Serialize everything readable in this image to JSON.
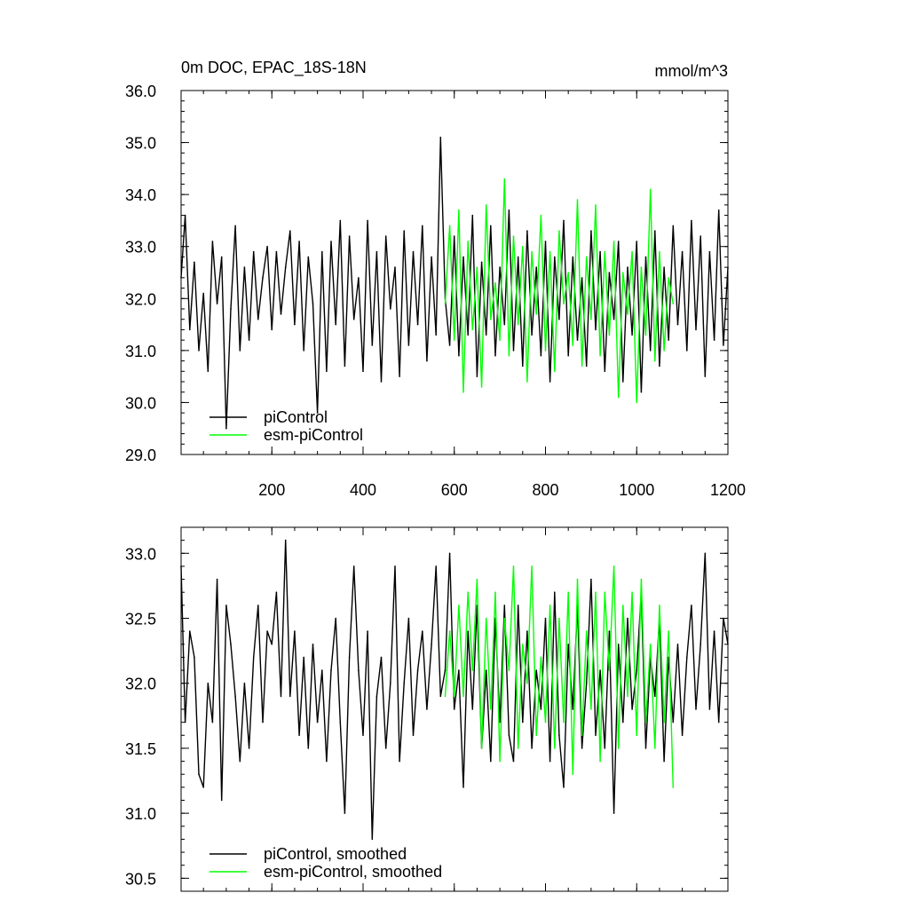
{
  "colors": {
    "picontrol": "#000000",
    "esm_picontrol": "#00ff00",
    "axis": "#000000"
  },
  "chart_data": [
    {
      "type": "line",
      "title": "0m DOC, EPAC_18S-18N",
      "units": "mmol/m^3",
      "xlim": [
        1,
        1200
      ],
      "ylim": [
        29.0,
        36.0
      ],
      "xticks": [
        200,
        400,
        600,
        800,
        1000,
        1200
      ],
      "xtick_labels": [
        "200",
        "400",
        "600",
        "800",
        "1000",
        "1200"
      ],
      "yticks": [
        29.0,
        30.0,
        31.0,
        32.0,
        33.0,
        34.0,
        35.0,
        36.0
      ],
      "ytick_labels": [
        "29.0",
        "30.0",
        "31.0",
        "32.0",
        "33.0",
        "34.0",
        "35.0",
        "36.0"
      ],
      "grid": false,
      "legend": "bottom-left",
      "series": [
        {
          "name": "piControl",
          "color": "#000000",
          "x": [
            1,
            10,
            20,
            30,
            40,
            50,
            60,
            70,
            80,
            90,
            100,
            110,
            120,
            130,
            140,
            150,
            160,
            170,
            180,
            190,
            200,
            210,
            220,
            230,
            240,
            250,
            260,
            270,
            280,
            290,
            300,
            310,
            320,
            330,
            340,
            350,
            360,
            370,
            380,
            390,
            400,
            410,
            420,
            430,
            440,
            450,
            460,
            470,
            480,
            490,
            500,
            510,
            520,
            530,
            540,
            550,
            560,
            570,
            580,
            590,
            600,
            610,
            620,
            630,
            640,
            650,
            660,
            670,
            680,
            690,
            700,
            710,
            720,
            730,
            740,
            750,
            760,
            770,
            780,
            790,
            800,
            810,
            820,
            830,
            840,
            850,
            860,
            870,
            880,
            890,
            900,
            910,
            920,
            930,
            940,
            950,
            960,
            970,
            980,
            990,
            1000,
            1010,
            1020,
            1030,
            1040,
            1050,
            1060,
            1070,
            1080,
            1090,
            1100,
            1110,
            1120,
            1130,
            1140,
            1150,
            1160,
            1170,
            1180,
            1190,
            1200
          ],
          "values": [
            32.4,
            33.6,
            31.4,
            32.7,
            31.0,
            32.1,
            30.6,
            33.1,
            31.9,
            32.8,
            29.5,
            31.8,
            33.4,
            31.0,
            32.6,
            31.2,
            32.9,
            31.6,
            32.4,
            33.0,
            31.4,
            32.9,
            31.7,
            32.6,
            33.3,
            31.5,
            33.1,
            31.0,
            32.8,
            31.9,
            29.8,
            32.9,
            30.6,
            33.1,
            31.5,
            33.5,
            30.7,
            33.2,
            31.6,
            32.4,
            30.6,
            33.5,
            31.1,
            32.9,
            30.4,
            33.2,
            31.8,
            32.6,
            30.5,
            33.3,
            31.1,
            32.9,
            31.5,
            33.4,
            30.8,
            32.8,
            31.3,
            35.1,
            32.0,
            31.1,
            33.2,
            30.9,
            32.8,
            31.3,
            33.6,
            30.5,
            32.7,
            31.3,
            33.4,
            30.9,
            32.6,
            31.5,
            33.7,
            31.0,
            32.8,
            30.7,
            33.3,
            31.3,
            32.6,
            30.9,
            33.1,
            30.4,
            32.8,
            31.6,
            33.5,
            30.9,
            32.8,
            31.2,
            32.4,
            30.7,
            33.3,
            31.4,
            32.9,
            30.6,
            32.5,
            31.6,
            33.1,
            30.4,
            32.6,
            31.3,
            33.1,
            30.2,
            32.8,
            31.0,
            33.3,
            30.7,
            32.6,
            31.2,
            33.4,
            31.5,
            32.9,
            31.0,
            33.5,
            31.4,
            33.2,
            30.5,
            32.9,
            31.2,
            33.7,
            31.1,
            32.6
          ]
        },
        {
          "name": "esm-piControl",
          "color": "#00ff00",
          "x": [
            580,
            590,
            600,
            610,
            620,
            630,
            640,
            650,
            660,
            670,
            680,
            690,
            700,
            710,
            720,
            730,
            740,
            750,
            760,
            770,
            780,
            790,
            800,
            810,
            820,
            830,
            840,
            850,
            860,
            870,
            880,
            890,
            900,
            910,
            920,
            930,
            940,
            950,
            960,
            970,
            980,
            990,
            1000,
            1010,
            1020,
            1030,
            1040,
            1050,
            1060,
            1070,
            1080
          ],
          "values": [
            31.9,
            33.4,
            31.2,
            33.7,
            30.2,
            33.1,
            31.4,
            32.6,
            30.3,
            33.8,
            31.6,
            32.3,
            31.2,
            34.3,
            30.9,
            33.2,
            31.5,
            33.0,
            30.4,
            32.9,
            31.7,
            33.6,
            31.0,
            32.9,
            30.6,
            33.3,
            31.9,
            32.5,
            31.1,
            33.9,
            30.7,
            32.8,
            31.6,
            33.8,
            30.9,
            32.9,
            31.3,
            33.1,
            30.1,
            32.5,
            31.7,
            32.9,
            30.0,
            32.6,
            31.3,
            34.1,
            30.8,
            32.9,
            31.0,
            32.4,
            31.9
          ]
        }
      ]
    },
    {
      "type": "line",
      "xlim": [
        1,
        1200
      ],
      "ylim": [
        30.4,
        33.2
      ],
      "xticks": [
        200,
        400,
        600,
        800,
        1000,
        1200
      ],
      "yticks": [
        30.5,
        31.0,
        31.5,
        32.0,
        32.5,
        33.0
      ],
      "ytick_labels": [
        "30.5",
        "31.0",
        "31.5",
        "32.0",
        "32.5",
        "33.0"
      ],
      "grid": false,
      "legend": "bottom-left",
      "series": [
        {
          "name": "piControl, smoothed",
          "color": "#000000",
          "x": [
            1,
            10,
            20,
            30,
            40,
            50,
            60,
            70,
            80,
            90,
            100,
            110,
            120,
            130,
            140,
            150,
            160,
            170,
            180,
            190,
            200,
            210,
            220,
            230,
            240,
            250,
            260,
            270,
            280,
            290,
            300,
            310,
            320,
            330,
            340,
            350,
            360,
            370,
            380,
            390,
            400,
            410,
            420,
            430,
            440,
            450,
            460,
            470,
            480,
            490,
            500,
            510,
            520,
            530,
            540,
            550,
            560,
            570,
            580,
            590,
            600,
            610,
            620,
            630,
            640,
            650,
            660,
            670,
            680,
            690,
            700,
            710,
            720,
            730,
            740,
            750,
            760,
            770,
            780,
            790,
            800,
            810,
            820,
            830,
            840,
            850,
            860,
            870,
            880,
            890,
            900,
            910,
            920,
            930,
            940,
            950,
            960,
            970,
            980,
            990,
            1000,
            1010,
            1020,
            1030,
            1040,
            1050,
            1060,
            1070,
            1080,
            1090,
            1100,
            1110,
            1120,
            1130,
            1140,
            1150,
            1160,
            1170,
            1180,
            1190,
            1200
          ],
          "values": [
            32.9,
            31.7,
            32.4,
            32.2,
            31.3,
            31.2,
            32.0,
            31.7,
            32.8,
            31.1,
            32.6,
            32.3,
            31.9,
            31.4,
            32.0,
            31.5,
            32.2,
            32.6,
            31.7,
            32.4,
            32.3,
            32.7,
            31.9,
            33.1,
            31.9,
            32.4,
            31.6,
            32.2,
            31.5,
            32.3,
            31.7,
            32.1,
            31.4,
            32.1,
            32.5,
            31.7,
            31.0,
            32.2,
            32.9,
            32.1,
            31.6,
            32.4,
            30.8,
            31.9,
            32.2,
            31.5,
            32.0,
            32.9,
            31.4,
            32.0,
            32.5,
            31.6,
            32.1,
            32.4,
            31.8,
            32.3,
            32.9,
            31.9,
            32.1,
            33.0,
            31.8,
            32.1,
            31.2,
            32.4,
            31.8,
            32.6,
            31.5,
            32.1,
            31.4,
            32.5,
            31.7,
            32.6,
            31.6,
            31.4,
            32.6,
            31.7,
            32.4,
            31.5,
            32.1,
            31.8,
            32.5,
            31.4,
            32.7,
            31.6,
            31.2,
            32.3,
            31.8,
            32.6,
            31.5,
            32.0,
            32.8,
            31.6,
            32.1,
            31.5,
            32.4,
            31.0,
            32.3,
            31.7,
            32.5,
            31.8,
            32.1,
            32.7,
            31.5,
            32.2,
            31.9,
            32.5,
            31.4,
            32.2,
            31.7,
            32.3,
            31.6,
            32.2,
            32.6,
            31.8,
            32.3,
            33.0,
            31.8,
            32.4,
            31.7,
            32.5,
            32.3
          ]
        },
        {
          "name": "esm-piControl, smoothed",
          "color": "#00ff00",
          "x": [
            580,
            590,
            600,
            610,
            620,
            630,
            640,
            650,
            660,
            670,
            680,
            690,
            700,
            710,
            720,
            730,
            740,
            750,
            760,
            770,
            780,
            790,
            800,
            810,
            820,
            830,
            840,
            850,
            860,
            870,
            880,
            890,
            900,
            910,
            920,
            930,
            940,
            950,
            960,
            970,
            980,
            990,
            1000,
            1010,
            1020,
            1030,
            1040,
            1050,
            1060,
            1070,
            1080
          ],
          "values": [
            31.9,
            32.4,
            31.9,
            32.6,
            31.9,
            32.7,
            32.1,
            32.8,
            31.5,
            32.5,
            31.8,
            32.7,
            31.4,
            32.5,
            32.1,
            32.9,
            31.5,
            32.3,
            32.0,
            32.9,
            31.6,
            32.2,
            31.7,
            32.6,
            31.5,
            32.5,
            31.7,
            32.7,
            31.3,
            32.8,
            31.6,
            32.4,
            31.8,
            32.7,
            31.4,
            32.7,
            32.1,
            32.9,
            31.5,
            32.6,
            31.9,
            32.7,
            31.6,
            32.8,
            31.7,
            32.3,
            31.5,
            32.6,
            31.7,
            32.4,
            31.2
          ]
        }
      ]
    }
  ]
}
